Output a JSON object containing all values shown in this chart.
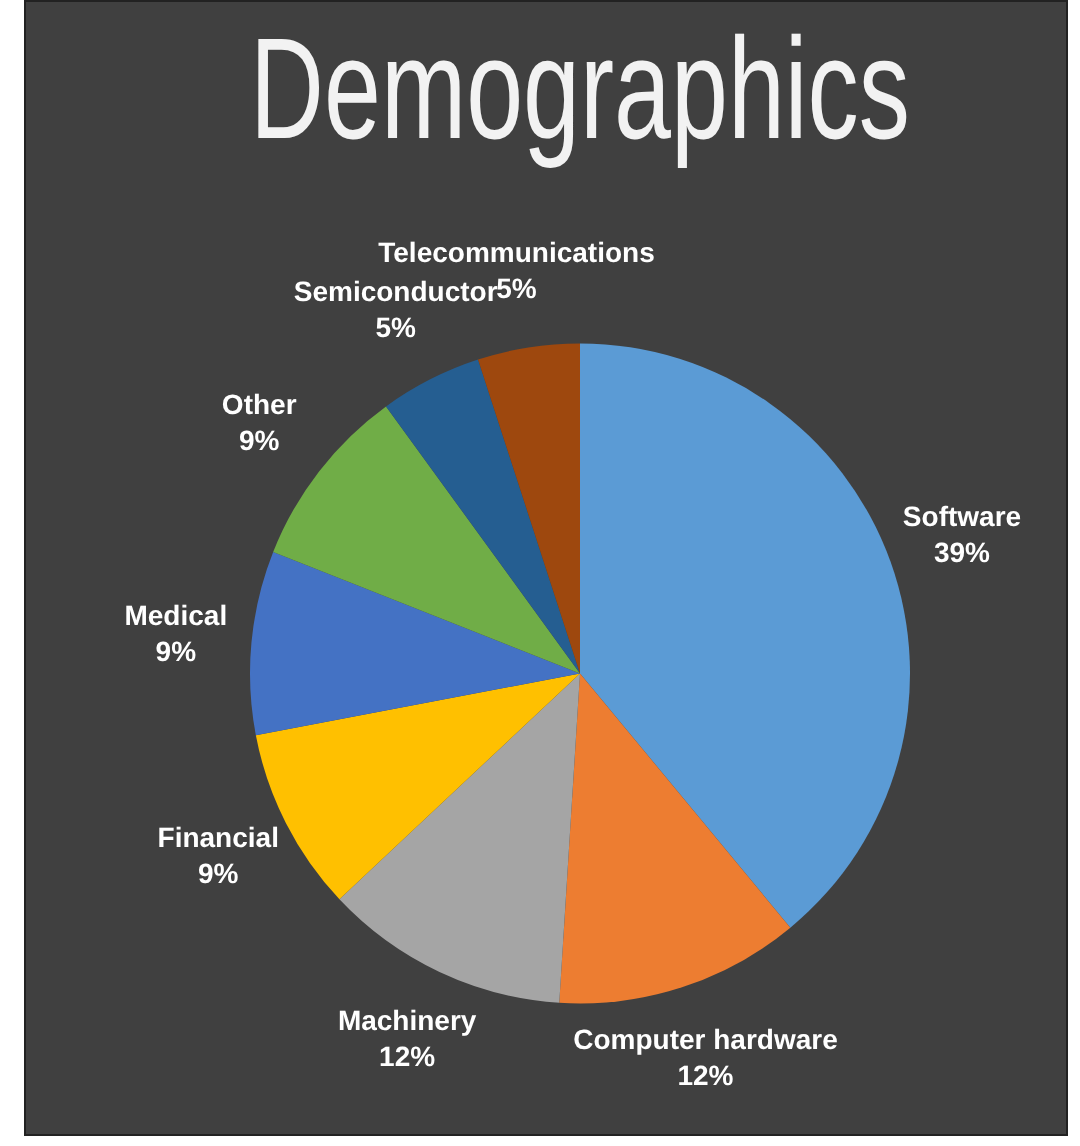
{
  "chart_data": {
    "type": "pie",
    "title": "Demographics",
    "categories": [
      "Software",
      "Computer hardware",
      "Machinery",
      "Financial",
      "Medical",
      "Other",
      "Semiconductor",
      "Telecommunications"
    ],
    "values": [
      39,
      12,
      12,
      9,
      9,
      9,
      5,
      5
    ],
    "value_labels": [
      "39%",
      "12%",
      "12%",
      "9%",
      "9%",
      "9%",
      "5%",
      "5%"
    ],
    "colors": [
      "#5b9bd5",
      "#ed7d31",
      "#a5a5a5",
      "#ffc000",
      "#4472c4",
      "#70ad47",
      "#255e91",
      "#9e480e"
    ]
  }
}
